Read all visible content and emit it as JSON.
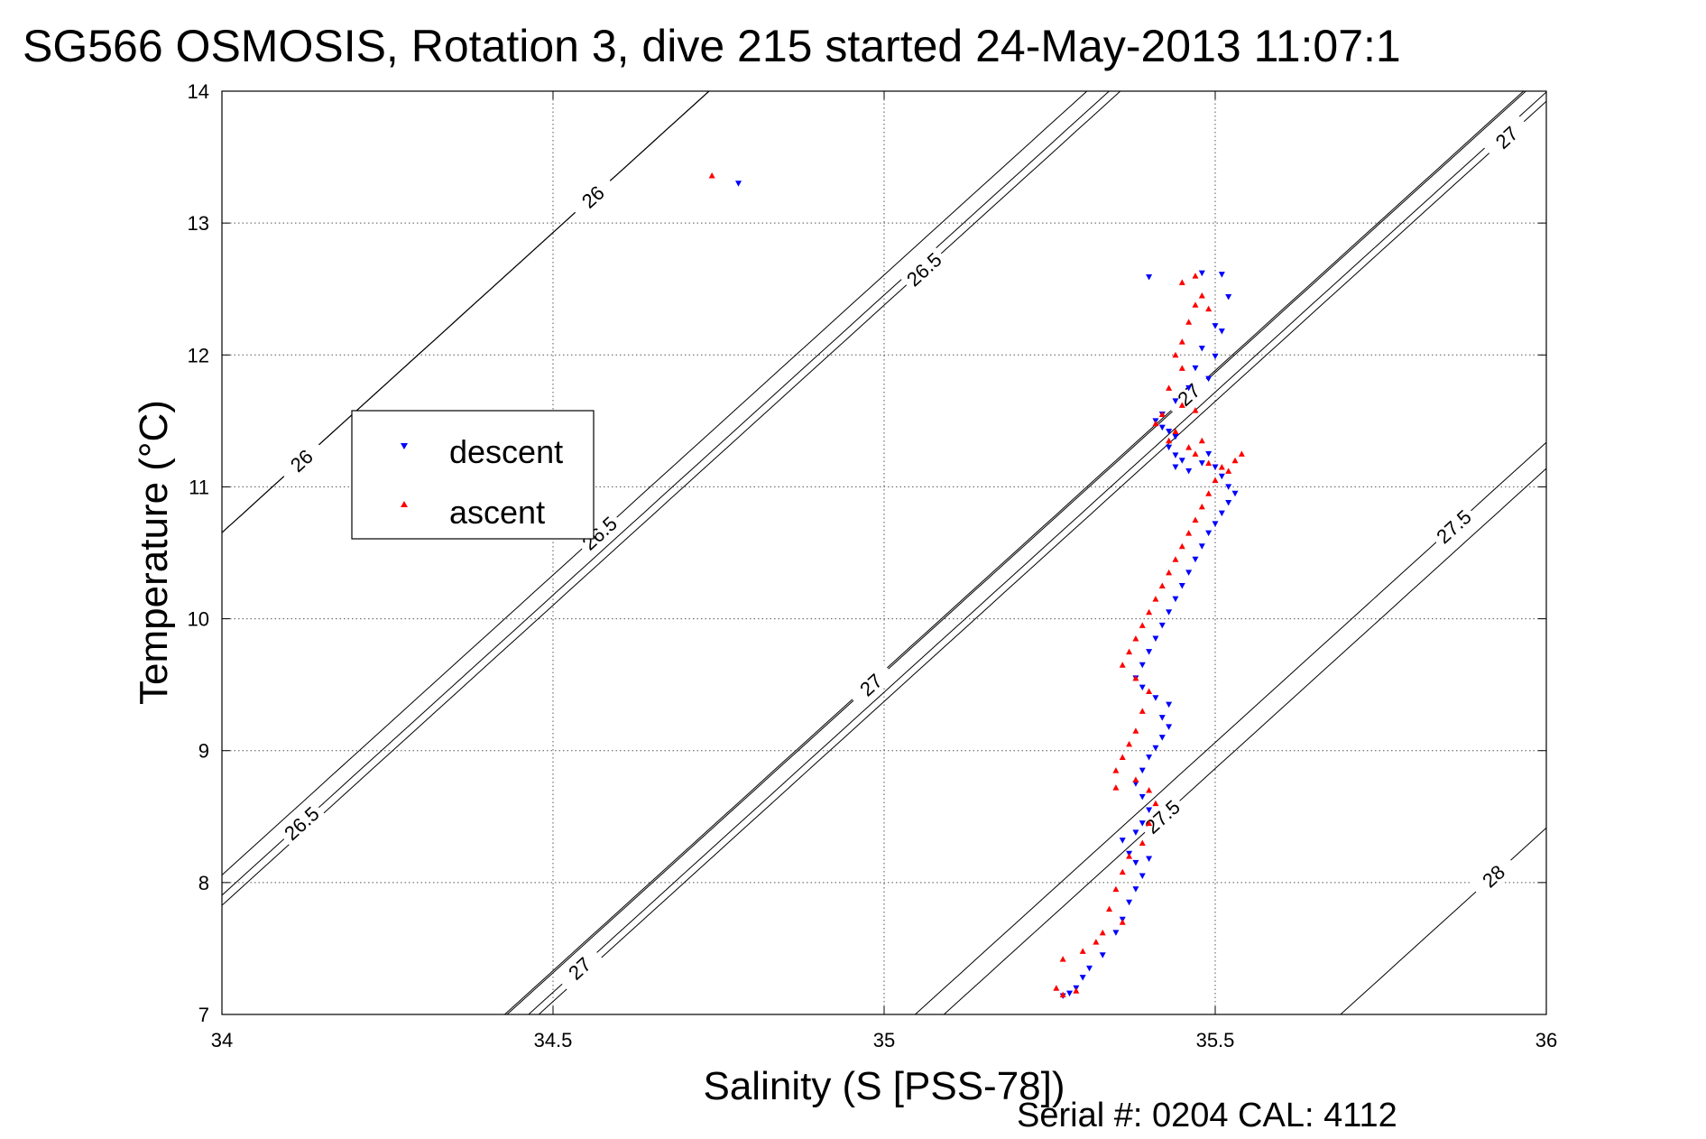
{
  "chart_data": {
    "type": "scatter",
    "title": "SG566 OSMOSIS, Rotation 3, dive 215 started 24-May-2013 11:07:1",
    "xlabel": "Salinity (S [PSS-78])",
    "ylabel": "Temperature (°C)",
    "xlim": [
      34,
      36
    ],
    "ylim": [
      7,
      14
    ],
    "x_ticks": [
      "34",
      "34.5",
      "35",
      "35.5",
      "36"
    ],
    "y_ticks": [
      "7",
      "8",
      "9",
      "10",
      "11",
      "12",
      "13",
      "14"
    ],
    "grid": true,
    "legend_position": "upper-left inside",
    "footer": "Serial #: 0204  CAL: 4112",
    "colors": {
      "descent": "#0000ff",
      "ascent": "#ff0000",
      "contour": "#000000"
    },
    "series": [
      {
        "name": "descent",
        "marker": "down-triangle",
        "points": [
          [
            34.78,
            13.3
          ],
          [
            35.4,
            12.59
          ],
          [
            35.48,
            12.62
          ],
          [
            35.51,
            12.61
          ],
          [
            35.52,
            12.44
          ],
          [
            35.5,
            12.22
          ],
          [
            35.51,
            12.18
          ],
          [
            35.48,
            12.05
          ],
          [
            35.5,
            11.99
          ],
          [
            35.47,
            11.9
          ],
          [
            35.49,
            11.82
          ],
          [
            35.46,
            11.75
          ],
          [
            35.44,
            11.65
          ],
          [
            35.42,
            11.55
          ],
          [
            35.41,
            11.5
          ],
          [
            35.42,
            11.45
          ],
          [
            35.43,
            11.42
          ],
          [
            35.44,
            11.38
          ],
          [
            35.43,
            11.3
          ],
          [
            35.44,
            11.24
          ],
          [
            35.45,
            11.2
          ],
          [
            35.44,
            11.15
          ],
          [
            35.46,
            11.12
          ],
          [
            35.48,
            11.18
          ],
          [
            35.49,
            11.25
          ],
          [
            35.5,
            11.15
          ],
          [
            35.51,
            11.08
          ],
          [
            35.52,
            11.0
          ],
          [
            35.53,
            10.95
          ],
          [
            35.52,
            10.88
          ],
          [
            35.51,
            10.8
          ],
          [
            35.5,
            10.72
          ],
          [
            35.49,
            10.65
          ],
          [
            35.48,
            10.55
          ],
          [
            35.47,
            10.45
          ],
          [
            35.46,
            10.35
          ],
          [
            35.45,
            10.25
          ],
          [
            35.44,
            10.15
          ],
          [
            35.43,
            10.05
          ],
          [
            35.42,
            9.95
          ],
          [
            35.41,
            9.85
          ],
          [
            35.4,
            9.75
          ],
          [
            35.39,
            9.65
          ],
          [
            35.38,
            9.55
          ],
          [
            35.39,
            9.48
          ],
          [
            35.41,
            9.4
          ],
          [
            35.43,
            9.35
          ],
          [
            35.42,
            9.25
          ],
          [
            35.43,
            9.18
          ],
          [
            35.42,
            9.1
          ],
          [
            35.41,
            9.02
          ],
          [
            35.4,
            8.95
          ],
          [
            35.39,
            8.85
          ],
          [
            35.38,
            8.75
          ],
          [
            35.39,
            8.65
          ],
          [
            35.4,
            8.55
          ],
          [
            35.39,
            8.45
          ],
          [
            35.38,
            8.38
          ],
          [
            35.36,
            8.32
          ],
          [
            35.37,
            8.22
          ],
          [
            35.38,
            8.15
          ],
          [
            35.4,
            8.18
          ],
          [
            35.39,
            8.05
          ],
          [
            35.38,
            7.95
          ],
          [
            35.37,
            7.85
          ],
          [
            35.36,
            7.72
          ],
          [
            35.35,
            7.62
          ],
          [
            35.33,
            7.45
          ],
          [
            35.31,
            7.35
          ],
          [
            35.3,
            7.28
          ],
          [
            35.29,
            7.2
          ],
          [
            35.28,
            7.16
          ],
          [
            35.27,
            7.14
          ]
        ]
      },
      {
        "name": "ascent",
        "marker": "up-triangle",
        "points": [
          [
            34.74,
            13.36
          ],
          [
            35.47,
            12.6
          ],
          [
            35.45,
            12.55
          ],
          [
            35.48,
            12.45
          ],
          [
            35.47,
            12.38
          ],
          [
            35.49,
            12.35
          ],
          [
            35.46,
            12.25
          ],
          [
            35.45,
            12.1
          ],
          [
            35.44,
            12.0
          ],
          [
            35.45,
            11.9
          ],
          [
            35.43,
            11.75
          ],
          [
            35.45,
            11.62
          ],
          [
            35.47,
            11.58
          ],
          [
            35.42,
            11.55
          ],
          [
            35.41,
            11.48
          ],
          [
            35.44,
            11.42
          ],
          [
            35.43,
            11.35
          ],
          [
            35.46,
            11.3
          ],
          [
            35.48,
            11.35
          ],
          [
            35.47,
            11.25
          ],
          [
            35.49,
            11.18
          ],
          [
            35.51,
            11.15
          ],
          [
            35.53,
            11.2
          ],
          [
            35.54,
            11.25
          ],
          [
            35.52,
            11.12
          ],
          [
            35.5,
            11.05
          ],
          [
            35.49,
            10.95
          ],
          [
            35.48,
            10.85
          ],
          [
            35.47,
            10.75
          ],
          [
            35.46,
            10.65
          ],
          [
            35.45,
            10.55
          ],
          [
            35.44,
            10.45
          ],
          [
            35.43,
            10.35
          ],
          [
            35.42,
            10.25
          ],
          [
            35.41,
            10.15
          ],
          [
            35.4,
            10.05
          ],
          [
            35.39,
            9.95
          ],
          [
            35.38,
            9.85
          ],
          [
            35.37,
            9.75
          ],
          [
            35.36,
            9.65
          ],
          [
            35.38,
            9.55
          ],
          [
            35.4,
            9.45
          ],
          [
            35.39,
            9.3
          ],
          [
            35.38,
            9.15
          ],
          [
            35.37,
            9.05
          ],
          [
            35.36,
            8.95
          ],
          [
            35.35,
            8.85
          ],
          [
            35.35,
            8.72
          ],
          [
            35.38,
            8.78
          ],
          [
            35.4,
            8.7
          ],
          [
            35.41,
            8.6
          ],
          [
            35.4,
            8.45
          ],
          [
            35.39,
            8.3
          ],
          [
            35.37,
            8.2
          ],
          [
            35.36,
            8.08
          ],
          [
            35.35,
            7.95
          ],
          [
            35.34,
            7.8
          ],
          [
            35.36,
            7.7
          ],
          [
            35.33,
            7.62
          ],
          [
            35.32,
            7.55
          ],
          [
            35.3,
            7.48
          ],
          [
            35.27,
            7.42
          ],
          [
            35.26,
            7.2
          ],
          [
            35.27,
            7.15
          ],
          [
            35.29,
            7.18
          ]
        ]
      }
    ],
    "isopycnals": [
      {
        "label": "26",
        "label_positions": [
          [
            34.12,
            11.2
          ],
          [
            34.56,
            13.2
          ]
        ]
      },
      {
        "label": "26.5",
        "label_positions": [
          [
            34.12,
            8.45
          ],
          [
            34.57,
            10.65
          ],
          [
            35.06,
            12.65
          ]
        ]
      },
      {
        "label": "27",
        "label_positions": [
          [
            34.54,
            7.35
          ],
          [
            34.98,
            9.5
          ],
          [
            35.46,
            11.7
          ],
          [
            35.94,
            13.65
          ]
        ]
      },
      {
        "label": "27.5",
        "label_positions": [
          [
            35.42,
            8.5
          ],
          [
            35.86,
            10.7
          ]
        ]
      },
      {
        "label": "28",
        "label_positions": [
          [
            35.92,
            8.05
          ]
        ]
      }
    ]
  }
}
